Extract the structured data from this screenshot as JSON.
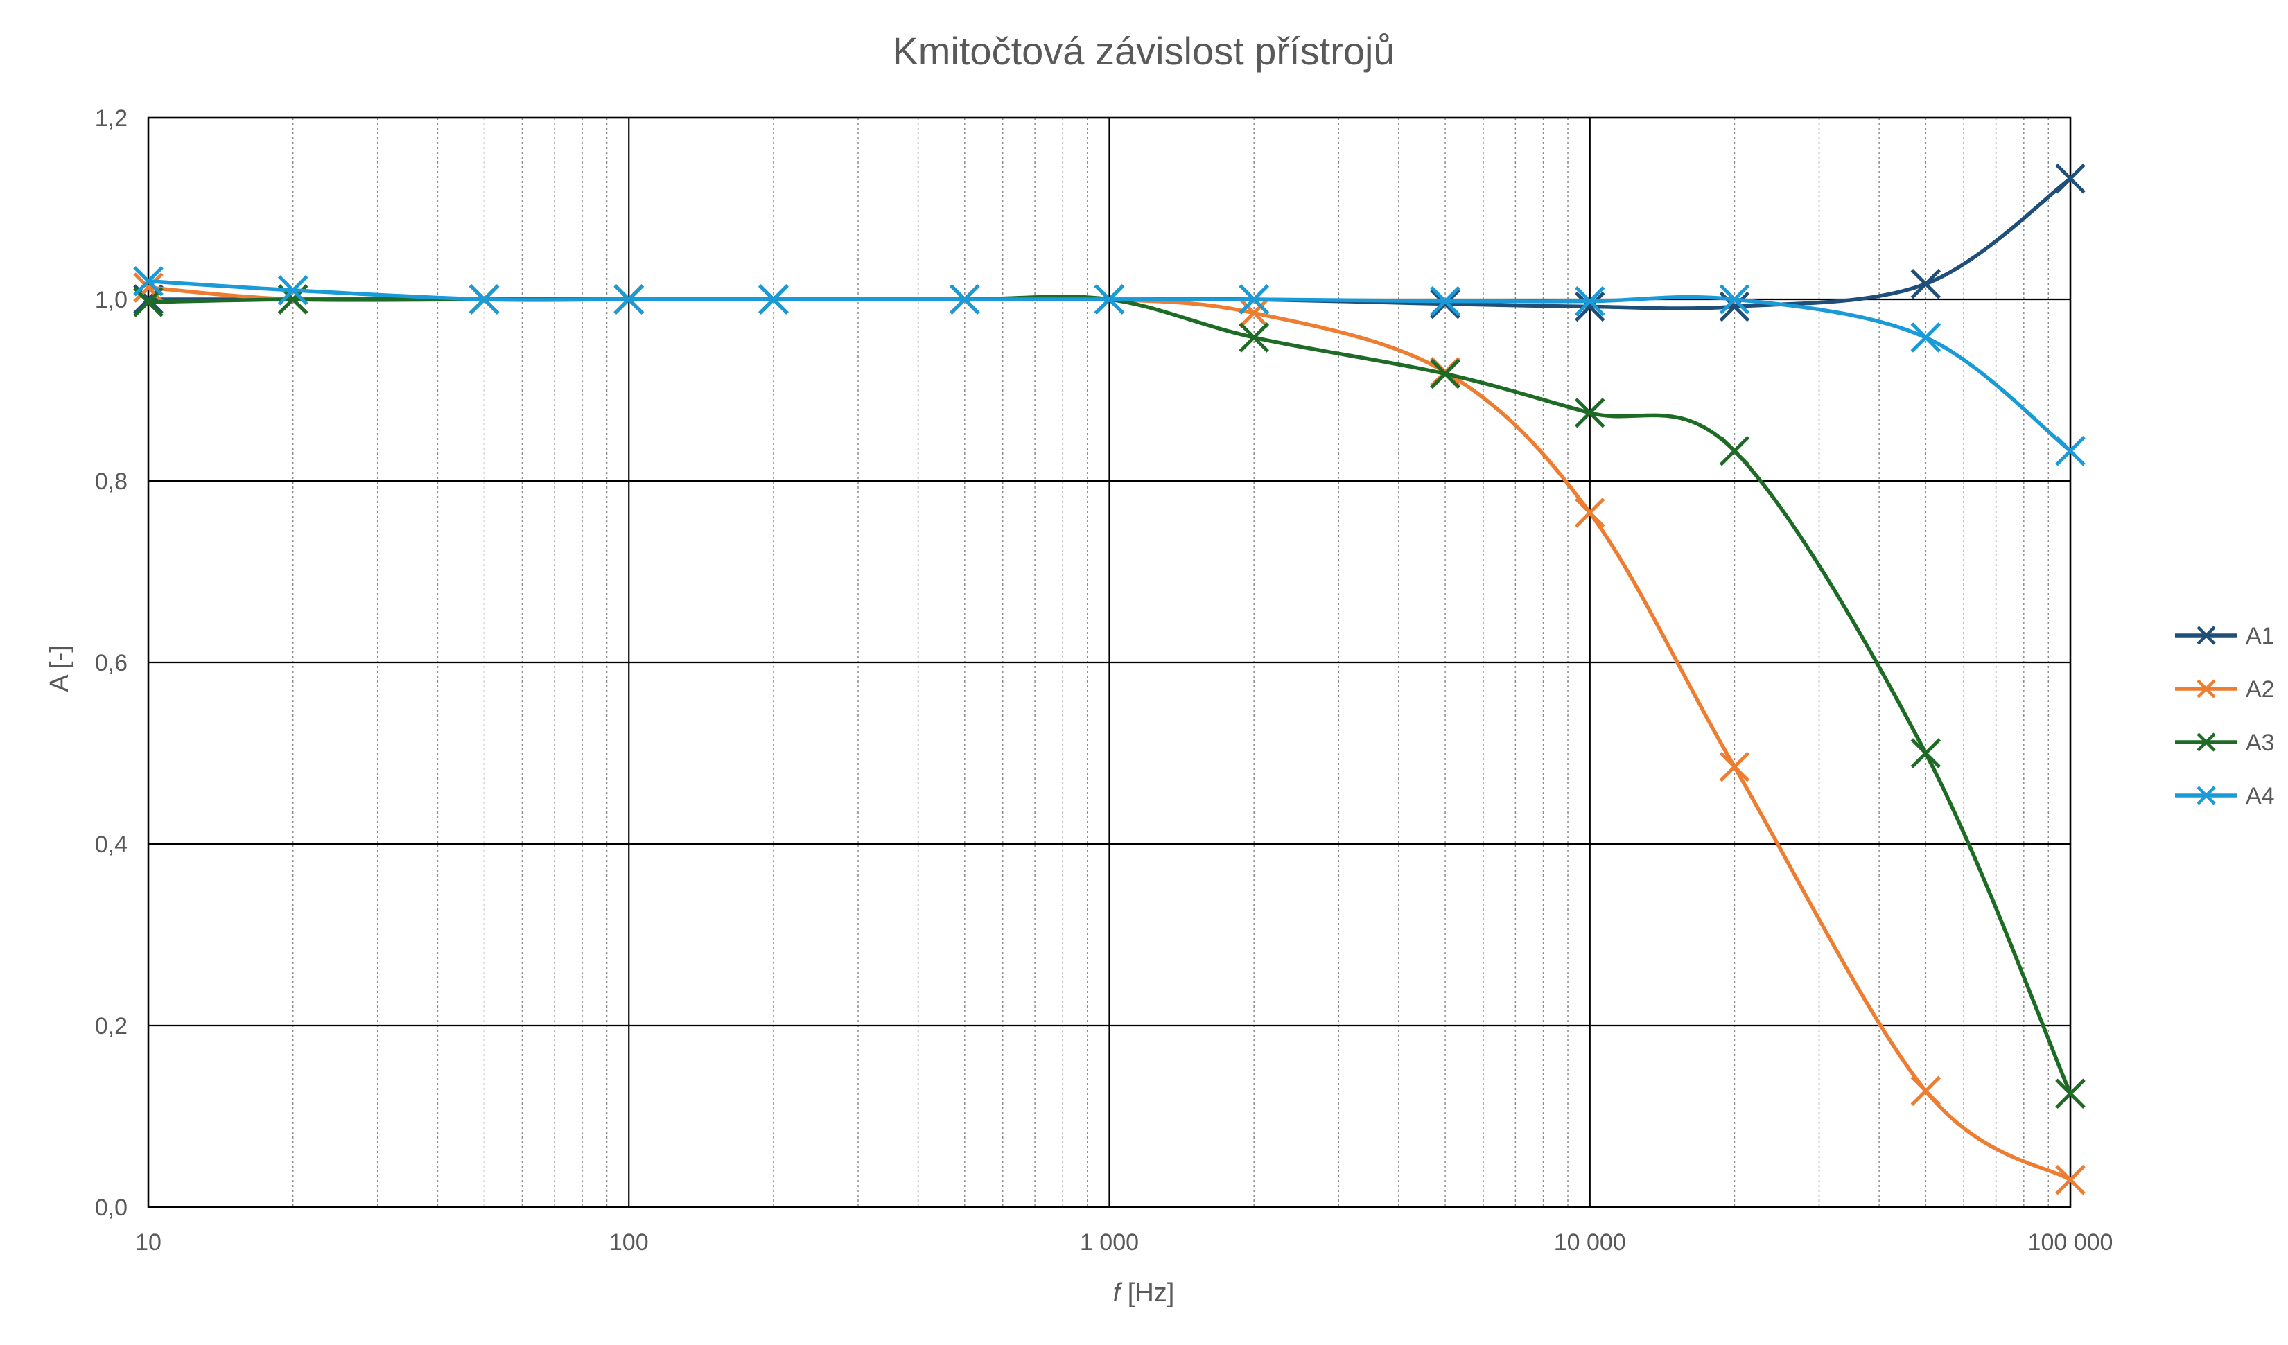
{
  "chart_data": {
    "type": "line",
    "title": "Kmitočtová závislost přístrojů",
    "xlabel_italic": "f",
    "xlabel_rest": " [Hz]",
    "ylabel": "A [-]",
    "x_scale": "log",
    "xlim": [
      10,
      100000
    ],
    "ylim": [
      0,
      1.2
    ],
    "x_ticks": [
      10,
      100,
      1000,
      10000,
      100000
    ],
    "x_tick_labels": [
      "10",
      "100",
      "1 000",
      "10 000",
      "100 000"
    ],
    "y_ticks": [
      0,
      0.2,
      0.4,
      0.6,
      0.8,
      1.0,
      1.2
    ],
    "y_tick_labels": [
      "0,0",
      "0,2",
      "0,4",
      "0,6",
      "0,8",
      "1,0",
      "1,2"
    ],
    "grid": "major solid, minor dotted on x",
    "legend_position": "right",
    "smooth": true,
    "marker": "x",
    "series": [
      {
        "name": "A1",
        "color": "#1F4E79",
        "x": [
          10,
          20,
          50,
          100,
          200,
          500,
          1000,
          2000,
          5000,
          10000,
          20000,
          50000,
          100000
        ],
        "y": [
          1.0,
          1.0,
          1.0,
          1.0,
          1.0,
          1.0,
          1.0,
          1.0,
          0.995,
          0.992,
          0.992,
          1.017,
          1.133
        ]
      },
      {
        "name": "A2",
        "color": "#ED7D31",
        "x": [
          10,
          20,
          50,
          100,
          200,
          500,
          1000,
          2000,
          5000,
          10000,
          20000,
          50000,
          100000
        ],
        "y": [
          1.013,
          1.0,
          1.0,
          1.0,
          1.0,
          1.0,
          1.0,
          0.985,
          0.92,
          0.765,
          0.485,
          0.128,
          0.03
        ]
      },
      {
        "name": "A3",
        "color": "#1E6B26",
        "x": [
          10,
          20,
          50,
          100,
          200,
          500,
          1000,
          2000,
          5000,
          10000,
          20000,
          50000,
          100000
        ],
        "y": [
          0.997,
          1.0,
          1.0,
          1.0,
          1.0,
          1.0,
          1.0,
          0.958,
          0.918,
          0.875,
          0.833,
          0.5,
          0.125
        ]
      },
      {
        "name": "A4",
        "color": "#1B9AD8",
        "x": [
          10,
          20,
          50,
          100,
          200,
          500,
          1000,
          2000,
          5000,
          10000,
          20000,
          50000,
          100000
        ],
        "y": [
          1.02,
          1.01,
          1.0,
          1.0,
          1.0,
          1.0,
          1.0,
          1.0,
          0.998,
          0.998,
          1.0,
          0.958,
          0.833
        ]
      }
    ]
  }
}
